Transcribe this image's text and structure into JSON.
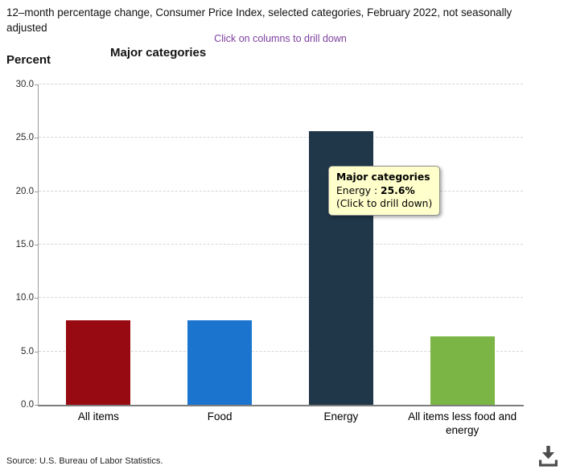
{
  "header": {
    "title": "12–month percentage change, Consumer Price Index, selected categories, February 2022, not seasonally adjusted",
    "drilldown_hint": "Click on columns to drill down",
    "hint_color": "#7d3f9d"
  },
  "chart": {
    "title": "Major categories",
    "ylabel": "Percent"
  },
  "chart_data": {
    "type": "bar",
    "title": "Major categories",
    "ylabel": "Percent",
    "categories": [
      "All items",
      "Food",
      "Energy",
      "All items less food and energy"
    ],
    "values": [
      7.9,
      7.9,
      25.6,
      6.4
    ],
    "bar_colors": [
      "#970a11",
      "#1b74ce",
      "#203749",
      "#7ab545"
    ],
    "ylim": [
      0,
      30
    ],
    "yticks": [
      0,
      5,
      10,
      15,
      20,
      25,
      30
    ],
    "ytick_labels": [
      "0.0",
      "5.0",
      "10.0",
      "15.0",
      "20.0",
      "25.0",
      "30.0"
    ],
    "grid": "horizontal-dashed",
    "legend": "none",
    "interaction_note": "columns are clickable to drill down"
  },
  "tooltip": {
    "title": "Major categories",
    "label": "Energy",
    "separator": " : ",
    "value": "25.6%",
    "hint": "(Click to drill down)",
    "bg_color": "#ffffcc"
  },
  "footer": {
    "source": "Source: U.S. Bureau of Labor Statistics."
  }
}
